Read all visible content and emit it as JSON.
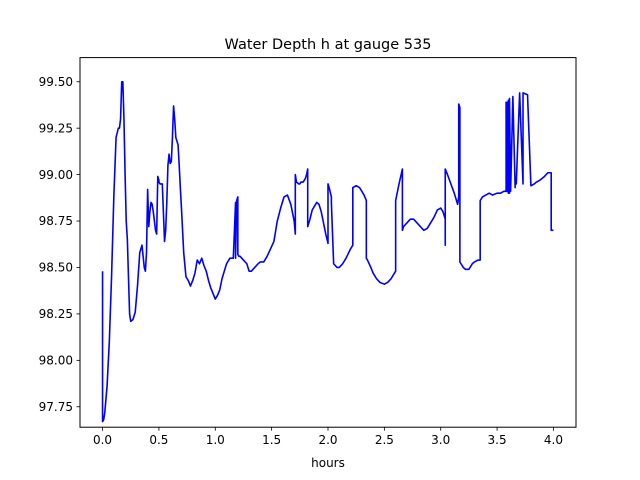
{
  "chart_data": {
    "type": "line",
    "title": "Water Depth h at gauge 535",
    "xlabel": "hours",
    "ylabel": "",
    "xlim": [
      -0.2,
      4.2
    ],
    "ylim": [
      97.64,
      99.63
    ],
    "grid": false,
    "x_ticks": [
      0.0,
      0.5,
      1.0,
      1.5,
      2.0,
      2.5,
      3.0,
      3.5,
      4.0
    ],
    "x_tick_labels": [
      "0.0",
      "0.5",
      "1.0",
      "1.5",
      "2.0",
      "2.5",
      "3.0",
      "3.5",
      "4.0"
    ],
    "y_ticks": [
      97.75,
      98.0,
      98.25,
      98.5,
      98.75,
      99.0,
      99.25,
      99.5
    ],
    "y_tick_labels": [
      "97.75",
      "98.00",
      "98.25",
      "98.50",
      "98.75",
      "99.00",
      "99.25",
      "99.50"
    ],
    "series": [
      {
        "color": "#0000ff",
        "x": [
          0.0,
          0.0,
          0.0,
          0.0,
          0.01,
          0.02,
          0.04,
          0.06,
          0.08,
          0.1,
          0.12,
          0.14,
          0.15,
          0.16,
          0.17,
          0.18,
          0.19,
          0.2,
          0.21,
          0.22,
          0.23,
          0.24,
          0.25,
          0.27,
          0.29,
          0.31,
          0.33,
          0.35,
          0.37,
          0.38,
          0.39,
          0.4,
          0.41,
          0.42,
          0.43,
          0.44,
          0.45,
          0.46,
          0.47,
          0.48,
          0.49,
          0.5,
          0.5,
          0.5,
          0.51,
          0.53,
          0.55,
          0.55,
          0.56,
          0.57,
          0.58,
          0.59,
          0.6,
          0.61,
          0.62,
          0.63,
          0.64,
          0.65,
          0.66,
          0.67,
          0.68,
          0.69,
          0.7,
          0.72,
          0.74,
          0.76,
          0.78,
          0.8,
          0.82,
          0.84,
          0.86,
          0.88,
          0.9,
          0.92,
          0.94,
          0.96,
          0.98,
          1.0,
          1.02,
          1.04,
          1.06,
          1.08,
          1.1,
          1.13,
          1.16,
          1.18,
          1.18,
          1.19,
          1.2,
          1.2,
          1.21,
          1.22,
          1.25,
          1.28,
          1.3,
          1.32,
          1.35,
          1.38,
          1.4,
          1.43,
          1.46,
          1.49,
          1.52,
          1.55,
          1.58,
          1.61,
          1.64,
          1.67,
          1.7,
          1.71,
          1.71,
          1.72,
          1.74,
          1.75,
          1.75,
          1.76,
          1.78,
          1.8,
          1.81,
          1.82,
          1.82,
          1.82,
          1.84,
          1.86,
          1.88,
          1.9,
          1.92,
          1.94,
          1.96,
          1.98,
          2.0,
          2.0,
          2.01,
          2.03,
          2.03,
          2.05,
          2.08,
          2.1,
          2.13,
          2.16,
          2.2,
          2.22,
          2.22,
          2.25,
          2.28,
          2.3,
          2.32,
          2.34,
          2.34,
          2.35,
          2.38,
          2.4,
          2.43,
          2.46,
          2.5,
          2.53,
          2.56,
          2.6,
          2.6,
          2.6,
          2.63,
          2.66,
          2.66,
          2.66,
          2.66,
          2.67,
          2.7,
          2.73,
          2.76,
          2.79,
          2.82,
          2.85,
          2.88,
          2.91,
          2.94,
          2.97,
          3.0,
          3.02,
          3.04,
          3.04,
          3.04,
          3.06,
          3.09,
          3.12,
          3.15,
          3.16,
          3.16,
          3.17,
          3.17,
          3.18,
          3.2,
          3.22,
          3.25,
          3.28,
          3.3,
          3.33,
          3.35,
          3.35,
          3.37,
          3.4,
          3.43,
          3.46,
          3.5,
          3.53,
          3.56,
          3.58,
          3.58,
          3.59,
          3.59,
          3.6,
          3.6,
          3.61,
          3.61,
          3.62,
          3.64,
          3.66,
          3.66,
          3.67,
          3.7,
          3.73,
          3.73,
          3.77,
          3.8,
          3.83,
          3.83,
          3.85,
          3.88,
          3.92,
          3.95,
          3.98,
          3.98,
          3.98,
          4.0,
          4.0
        ],
        "y": [
          98.48,
          97.98,
          97.85,
          97.67,
          97.68,
          97.72,
          97.86,
          98.1,
          98.45,
          98.88,
          99.2,
          99.25,
          99.25,
          99.3,
          99.5,
          99.5,
          99.3,
          99.0,
          98.75,
          98.65,
          98.45,
          98.25,
          98.21,
          98.22,
          98.26,
          98.4,
          98.58,
          98.62,
          98.5,
          98.48,
          98.58,
          98.92,
          98.72,
          98.8,
          98.85,
          98.84,
          98.8,
          98.75,
          98.7,
          98.68,
          98.99,
          98.97,
          98.97,
          98.96,
          98.95,
          98.95,
          98.64,
          98.64,
          98.7,
          98.85,
          99.05,
          99.11,
          99.06,
          99.07,
          99.2,
          99.37,
          99.3,
          99.2,
          99.18,
          99.16,
          99.05,
          98.93,
          98.82,
          98.58,
          98.45,
          98.43,
          98.4,
          98.43,
          98.47,
          98.54,
          98.52,
          98.55,
          98.51,
          98.48,
          98.43,
          98.39,
          98.36,
          98.33,
          98.35,
          98.38,
          98.44,
          98.48,
          98.52,
          98.55,
          98.55,
          98.85,
          98.55,
          98.86,
          98.88,
          98.57,
          98.56,
          98.56,
          98.54,
          98.52,
          98.48,
          98.48,
          98.5,
          98.52,
          98.53,
          98.53,
          98.56,
          98.6,
          98.64,
          98.75,
          98.82,
          98.88,
          98.89,
          98.84,
          98.75,
          98.68,
          99.0,
          98.96,
          98.95,
          98.95,
          98.95,
          98.96,
          98.96,
          98.98,
          99.0,
          99.03,
          98.72,
          98.72,
          98.76,
          98.81,
          98.83,
          98.85,
          98.84,
          98.8,
          98.74,
          98.68,
          98.63,
          98.95,
          98.93,
          98.88,
          98.85,
          98.52,
          98.5,
          98.5,
          98.52,
          98.55,
          98.6,
          98.62,
          98.93,
          98.94,
          98.93,
          98.91,
          98.89,
          98.86,
          98.55,
          98.54,
          98.5,
          98.47,
          98.44,
          98.42,
          98.41,
          98.42,
          98.44,
          98.48,
          98.55,
          98.86,
          98.95,
          99.03,
          98.7,
          99.03,
          98.7,
          98.72,
          98.74,
          98.76,
          98.76,
          98.74,
          98.72,
          98.7,
          98.71,
          98.74,
          98.77,
          98.81,
          98.82,
          98.8,
          98.76,
          98.62,
          99.03,
          99.0,
          98.95,
          98.9,
          98.84,
          98.88,
          99.38,
          99.36,
          98.53,
          98.52,
          98.5,
          98.49,
          98.49,
          98.52,
          98.53,
          98.54,
          98.54,
          98.86,
          98.88,
          98.89,
          98.9,
          98.89,
          98.9,
          98.9,
          98.91,
          98.91,
          99.39,
          98.91,
          99.39,
          98.9,
          99.4,
          98.9,
          99.41,
          98.91,
          99.42,
          98.93,
          98.95,
          98.95,
          99.44,
          98.95,
          99.44,
          99.43,
          98.94,
          98.95,
          98.95,
          98.96,
          98.97,
          98.99,
          99.01,
          99.01,
          98.7,
          98.7,
          98.7,
          98.7
        ]
      }
    ]
  }
}
